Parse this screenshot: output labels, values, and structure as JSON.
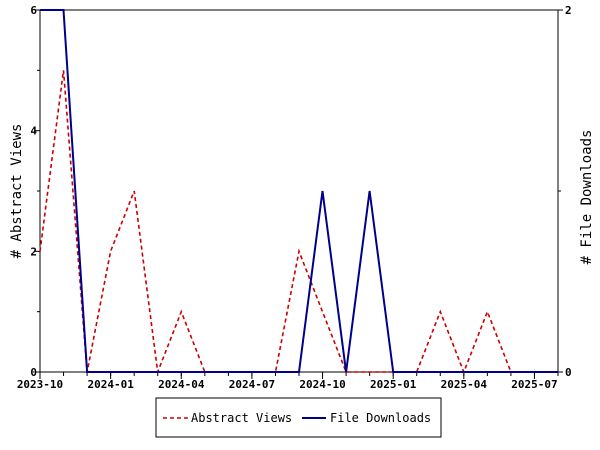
{
  "chart_data": {
    "type": "line",
    "x": [
      "2023-10",
      "2023-11",
      "2023-12",
      "2024-01",
      "2024-02",
      "2024-03",
      "2024-04",
      "2024-05",
      "2024-06",
      "2024-07",
      "2024-08",
      "2024-09",
      "2024-10",
      "2024-11",
      "2024-12",
      "2025-01",
      "2025-02",
      "2025-03",
      "2025-04",
      "2025-05",
      "2025-06",
      "2025-07",
      "2025-08"
    ],
    "x_ticks": [
      "2023-10",
      "2024-01",
      "2024-04",
      "2024-07",
      "2024-10",
      "2025-01",
      "2025-04",
      "2025-07"
    ],
    "series": [
      {
        "name": "Abstract Views",
        "axis": "left",
        "color": "#cc0000",
        "dash": "dashed",
        "values": [
          2,
          5,
          0,
          2,
          3,
          0,
          1,
          0,
          0,
          0,
          0,
          2,
          1,
          0,
          0,
          0,
          0,
          1,
          0,
          1,
          0,
          0,
          0
        ]
      },
      {
        "name": "File Downloads",
        "axis": "right",
        "color": "#00008b",
        "dash": "solid",
        "values": [
          2,
          2,
          0,
          0,
          0,
          0,
          0,
          0,
          0,
          0,
          0,
          0,
          1,
          0,
          1,
          0,
          0,
          0,
          0,
          0,
          0,
          0,
          0
        ]
      }
    ],
    "ylabel": "# Abstract Views",
    "y2label": "# File Downloads",
    "ylim": [
      0,
      6
    ],
    "y_ticks": [
      "0",
      "2",
      "4",
      "6"
    ],
    "y2lim": [
      0,
      2
    ],
    "y2_ticks": [
      "0",
      "2"
    ],
    "grid": false,
    "legend_position": "bottom-center"
  }
}
